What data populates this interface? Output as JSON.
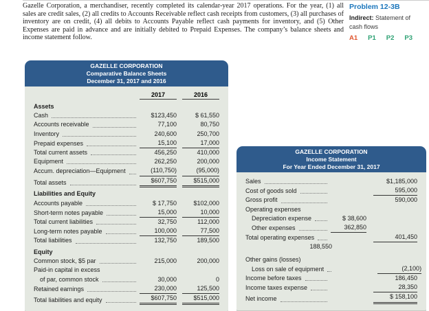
{
  "page": {
    "intro_text": "Gazelle Corporation, a merchandiser, recently completed its calendar-year 2017 operations. For the year, (1) all sales are credit sales, (2) all credits to Accounts Receivable reflect cash receipts from customers, (3) all purchases of inventory are on credit, (4) all debits to Accounts Payable reflect cash payments for inventory, and (5) Other Expenses are paid in advance and are initially debited to Prepaid Expenses. The company’s balance sheets and income statement follow."
  },
  "sidebar": {
    "problem_label": "Problem 12-3B",
    "subtitle_bold": "Indirect:",
    "subtitle_rest": " Statement of cash flows",
    "codes": [
      "A1",
      "P1",
      "P2",
      "P3"
    ],
    "colors": {
      "problem_blue": "#1b76bc",
      "code_orange": "#e0552f",
      "code_green": "#2da173"
    }
  },
  "colors": {
    "table_header_bg": "#2f5b8c",
    "table_body_bg": "#e4e8e1"
  },
  "balance_sheet": {
    "header": [
      "GAZELLE CORPORATION",
      "Comparative Balance Sheets",
      "December 31, 2017 and 2016"
    ],
    "columns": [
      "2017",
      "2016"
    ],
    "rows": [
      {
        "label": "Assets"
      },
      {
        "label": "Cash",
        "v2017": "$123,450",
        "v2016": "$ 61,550"
      },
      {
        "label": "Accounts receivable",
        "v2017": "77,100",
        "v2016": "80,750"
      },
      {
        "label": "Inventory",
        "v2017": "240,600",
        "v2016": "250,700"
      },
      {
        "label": "Prepaid expenses",
        "v2017": "15,100",
        "v2016": "17,000"
      },
      {
        "label": "Total current assets",
        "v2017": "456,250",
        "v2016": "410,000"
      },
      {
        "label": "Equipment",
        "v2017": "262,250",
        "v2016": "200,000"
      },
      {
        "label": "Accum. depreciation—Equipment",
        "v2017": "(110,750)",
        "v2016": "(95,000)"
      },
      {
        "label": "Total assets",
        "v2017": "$607,750",
        "v2016": "$515,000"
      },
      {
        "label": "Liabilities and Equity"
      },
      {
        "label": "Accounts payable",
        "v2017": "$ 17,750",
        "v2016": "$102,000"
      },
      {
        "label": "Short-term notes payable",
        "v2017": "15,000",
        "v2016": "10,000"
      },
      {
        "label": "Total current liabilities",
        "v2017": "32,750",
        "v2016": "112,000"
      },
      {
        "label": "Long-term notes payable",
        "v2017": "100,000",
        "v2016": "77,500"
      },
      {
        "label": "Total liabilities",
        "v2017": "132,750",
        "v2016": "189,500"
      },
      {
        "label": "Equity"
      },
      {
        "label": "Common stock, $5 par",
        "v2017": "215,000",
        "v2016": "200,000"
      },
      {
        "label": "Paid-in capital in excess"
      },
      {
        "label": "of par, common stock",
        "v2017": "30,000",
        "v2016": "0"
      },
      {
        "label": "Retained earnings",
        "v2017": "230,000",
        "v2016": "125,500"
      },
      {
        "label": "Total liabilities and equity",
        "v2017": "$607,750",
        "v2016": "$515,000"
      }
    ]
  },
  "income_statement": {
    "header": [
      "GAZELLE CORPORATION",
      "Income Statement",
      "For Year Ended December 31, 2017"
    ],
    "rows": [
      {
        "label": "Sales",
        "right": "$1,185,000"
      },
      {
        "label": "Cost of goods sold",
        "right": "595,000"
      },
      {
        "label": "Gross profit",
        "right": "590,000"
      },
      {
        "label": "Operating expenses"
      },
      {
        "label": "Depreciation expense",
        "inner": "$ 38,600"
      },
      {
        "label": "Other expenses",
        "inner": "362,850"
      },
      {
        "label": "Total operating expenses",
        "right": "401,450"
      },
      {
        "label": "",
        "right": "188,550"
      },
      {
        "label": "Other gains (losses)"
      },
      {
        "label": "Loss on sale of equipment",
        "right": "(2,100)"
      },
      {
        "label": "Income before taxes",
        "right": "186,450"
      },
      {
        "label": "Income taxes expense",
        "right": "28,350"
      },
      {
        "label": "Net income",
        "right": "$ 158,100"
      }
    ]
  }
}
